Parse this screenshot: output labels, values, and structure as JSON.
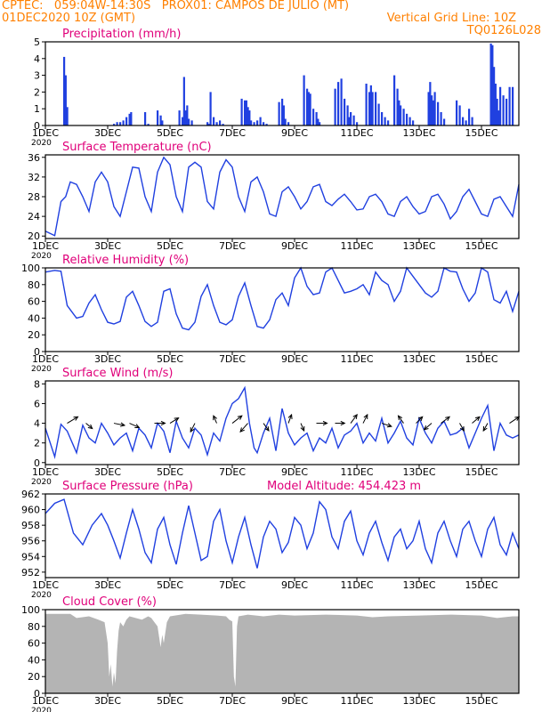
{
  "header": {
    "line1_left": "CPTEC:   059:04W-14:30S   PROX01: CAMPOS DE JULIO (MT)",
    "line2_left": "01DEC2020 10Z (GMT)",
    "line2_right": "Vertical Grid Line: 10Z",
    "line3_right": "TQ0126L028"
  },
  "colors": {
    "header": "#ff8000",
    "title": "#e0007a",
    "series": "#2040e0",
    "cloud": "#b4b4b4",
    "axis": "#000000",
    "arrow": "#000000"
  },
  "x_axis": {
    "ticks": [
      "1DEC",
      "3DEC",
      "5DEC",
      "7DEC",
      "9DEC",
      "11DEC",
      "13DEC",
      "15DEC"
    ],
    "tick_days": [
      0,
      2,
      4,
      6,
      8,
      10,
      12,
      14
    ],
    "range_days": [
      0,
      15.2
    ],
    "year_label": "2020"
  },
  "chart_data": [
    {
      "type": "bar",
      "title": "Precipitation (mm/h)",
      "ylim": [
        0,
        5
      ],
      "yticks": [
        0,
        1,
        2,
        3,
        4,
        5
      ],
      "x_days": [
        0.6,
        0.65,
        0.7,
        2.2,
        2.3,
        2.4,
        2.5,
        2.6,
        2.7,
        2.75,
        3.2,
        3.3,
        3.6,
        3.7,
        3.75,
        4.3,
        4.4,
        4.45,
        4.5,
        4.55,
        4.6,
        4.7,
        5.2,
        5.25,
        5.3,
        5.4,
        5.5,
        5.6,
        5.7,
        6.3,
        6.4,
        6.45,
        6.5,
        6.55,
        6.6,
        6.7,
        6.8,
        6.9,
        7.0,
        7.1,
        7.5,
        7.6,
        7.65,
        7.7,
        7.8,
        8.3,
        8.4,
        8.45,
        8.5,
        8.6,
        8.7,
        8.75,
        8.8,
        9.3,
        9.4,
        9.5,
        9.6,
        9.7,
        9.75,
        9.8,
        9.9,
        10.0,
        10.3,
        10.4,
        10.45,
        10.5,
        10.6,
        10.7,
        10.8,
        10.9,
        11.0,
        11.2,
        11.3,
        11.35,
        11.4,
        11.5,
        11.6,
        11.7,
        11.8,
        12.3,
        12.35,
        12.4,
        12.45,
        12.5,
        12.6,
        12.7,
        12.8,
        13.2,
        13.3,
        13.4,
        13.5,
        13.6,
        13.7,
        14.3,
        14.35,
        14.4,
        14.45,
        14.5,
        14.55,
        14.6,
        14.7,
        14.8,
        14.9,
        15.0
      ],
      "values": [
        4.1,
        3.0,
        1.1,
        0.1,
        0.2,
        0.2,
        0.3,
        0.5,
        0.7,
        0.8,
        0.8,
        0.1,
        0.9,
        0.6,
        0.3,
        0.9,
        0.5,
        2.9,
        0.9,
        1.2,
        0.4,
        0.3,
        0.2,
        0.1,
        2.0,
        0.5,
        0.2,
        0.3,
        0.1,
        1.6,
        1.5,
        1.5,
        1.1,
        0.9,
        0.3,
        0.2,
        0.3,
        0.5,
        0.2,
        0.1,
        1.4,
        1.6,
        1.2,
        0.4,
        0.2,
        3.0,
        2.2,
        2.0,
        1.9,
        1.0,
        0.8,
        0.4,
        0.2,
        2.2,
        2.6,
        2.8,
        1.6,
        1.2,
        0.5,
        0.8,
        0.6,
        0.2,
        2.5,
        2.0,
        2.4,
        2.0,
        2.0,
        1.3,
        0.8,
        0.5,
        0.3,
        3.0,
        2.2,
        1.5,
        1.2,
        1.0,
        0.7,
        0.5,
        0.3,
        2.0,
        2.6,
        1.8,
        1.5,
        2.0,
        1.4,
        0.8,
        0.4,
        1.5,
        1.2,
        0.5,
        0.3,
        1.0,
        0.5,
        4.9,
        4.8,
        3.5,
        2.5,
        1.6,
        0.9,
        2.3,
        1.8,
        1.6,
        2.3,
        2.3
      ]
    },
    {
      "type": "line",
      "title": "Surface Temperature (nC)",
      "ylim": [
        19.5,
        36.5
      ],
      "yticks": [
        20,
        24,
        28,
        32,
        36
      ],
      "x_days": [
        0,
        0.3,
        0.5,
        0.65,
        0.8,
        1.0,
        1.2,
        1.4,
        1.6,
        1.8,
        2.0,
        2.2,
        2.4,
        2.6,
        2.8,
        3.0,
        3.2,
        3.4,
        3.6,
        3.8,
        4.0,
        4.2,
        4.4,
        4.6,
        4.8,
        5.0,
        5.2,
        5.4,
        5.6,
        5.8,
        6.0,
        6.2,
        6.4,
        6.6,
        6.8,
        7.0,
        7.2,
        7.4,
        7.6,
        7.8,
        8.0,
        8.2,
        8.4,
        8.6,
        8.8,
        9.0,
        9.2,
        9.4,
        9.6,
        9.8,
        10.0,
        10.2,
        10.4,
        10.6,
        10.8,
        11.0,
        11.2,
        11.4,
        11.6,
        11.8,
        12.0,
        12.2,
        12.4,
        12.6,
        12.8,
        13.0,
        13.2,
        13.4,
        13.6,
        13.8,
        14.0,
        14.2,
        14.4,
        14.6,
        14.8,
        15.0,
        15.2
      ],
      "values": [
        21,
        20.1,
        27,
        28,
        31,
        30.5,
        28,
        25,
        31,
        33,
        31,
        26,
        24,
        29,
        34,
        33.8,
        28,
        25,
        33,
        36,
        34.5,
        28,
        25,
        34,
        35,
        34,
        27,
        25.5,
        33,
        35.5,
        34,
        28,
        25,
        31,
        32,
        29,
        24.5,
        24,
        29,
        30,
        28,
        25.5,
        27,
        30,
        30.5,
        27,
        26.2,
        27.5,
        28.5,
        27,
        25.3,
        25.5,
        28,
        28.5,
        27,
        24.5,
        24,
        27,
        28,
        26,
        24.5,
        25,
        28,
        28.5,
        26.5,
        23.5,
        25,
        28,
        29.5,
        27,
        24.5,
        24,
        27.5,
        28,
        26,
        24,
        30.5
      ]
    },
    {
      "type": "line",
      "title": "Relative Humidity (%)",
      "ylim": [
        0,
        100
      ],
      "yticks": [
        0,
        20,
        40,
        60,
        80,
        100
      ],
      "x_days": [
        0,
        0.3,
        0.5,
        0.7,
        1.0,
        1.2,
        1.4,
        1.6,
        1.8,
        2.0,
        2.2,
        2.4,
        2.6,
        2.8,
        3.0,
        3.2,
        3.4,
        3.6,
        3.8,
        4.0,
        4.2,
        4.4,
        4.6,
        4.8,
        5.0,
        5.2,
        5.4,
        5.6,
        5.8,
        6.0,
        6.2,
        6.4,
        6.6,
        6.8,
        7.0,
        7.2,
        7.4,
        7.6,
        7.8,
        8.0,
        8.2,
        8.4,
        8.6,
        8.8,
        9.0,
        9.2,
        9.4,
        9.6,
        9.8,
        10.0,
        10.2,
        10.4,
        10.6,
        10.8,
        11.0,
        11.2,
        11.4,
        11.6,
        11.8,
        12.0,
        12.2,
        12.4,
        12.6,
        12.8,
        13.0,
        13.2,
        13.4,
        13.6,
        13.8,
        14.0,
        14.2,
        14.4,
        14.6,
        14.8,
        15.0,
        15.2
      ],
      "values": [
        95,
        97,
        96,
        55,
        40,
        42,
        58,
        68,
        50,
        35,
        33,
        36,
        65,
        72,
        55,
        36,
        30,
        35,
        72,
        75,
        45,
        28,
        26,
        35,
        66,
        80,
        55,
        35,
        32,
        38,
        66,
        82,
        55,
        30,
        28,
        38,
        62,
        70,
        55,
        88,
        100,
        78,
        68,
        70,
        95,
        100,
        85,
        70,
        72,
        75,
        80,
        68,
        95,
        85,
        80,
        60,
        72,
        100,
        90,
        80,
        70,
        65,
        72,
        100,
        96,
        95,
        75,
        60,
        70,
        100,
        95,
        62,
        58,
        72,
        48,
        72
      ]
    },
    {
      "type": "line",
      "title": "Surface Wind (m/s)",
      "ylim": [
        -0.2,
        8.3
      ],
      "yticks": [
        0,
        2,
        4,
        6,
        8
      ],
      "x_days": [
        0,
        0.3,
        0.5,
        0.7,
        1.0,
        1.2,
        1.4,
        1.6,
        1.8,
        2.0,
        2.2,
        2.4,
        2.6,
        2.8,
        3.0,
        3.2,
        3.4,
        3.6,
        3.8,
        4.0,
        4.2,
        4.4,
        4.6,
        4.8,
        5.0,
        5.2,
        5.4,
        5.6,
        5.8,
        6.0,
        6.2,
        6.4,
        6.55,
        6.7,
        6.8,
        7.0,
        7.2,
        7.4,
        7.6,
        7.8,
        8.0,
        8.2,
        8.4,
        8.6,
        8.8,
        9.0,
        9.2,
        9.4,
        9.6,
        9.8,
        10.0,
        10.2,
        10.4,
        10.6,
        10.8,
        11.0,
        11.2,
        11.4,
        11.6,
        11.8,
        12.0,
        12.2,
        12.4,
        12.6,
        12.8,
        13.0,
        13.2,
        13.4,
        13.6,
        13.8,
        14.0,
        14.2,
        14.4,
        14.6,
        14.8,
        15.0,
        15.2
      ],
      "values": [
        3.5,
        0.6,
        3.9,
        3.2,
        1.0,
        3.8,
        2.5,
        2.0,
        4.0,
        3.0,
        1.8,
        2.5,
        3.0,
        1.2,
        3.5,
        2.8,
        1.5,
        4.0,
        3.2,
        1.0,
        4.2,
        2.5,
        1.5,
        3.5,
        2.8,
        0.8,
        3.0,
        2.2,
        4.5,
        6.0,
        6.5,
        7.6,
        4.0,
        1.5,
        1.0,
        3.0,
        4.5,
        1.2,
        5.5,
        3.0,
        1.8,
        2.5,
        3.0,
        1.2,
        2.5,
        2.0,
        3.5,
        1.5,
        2.8,
        3.2,
        4.0,
        2.0,
        3.0,
        2.2,
        4.5,
        2.0,
        3.0,
        4.2,
        2.5,
        1.8,
        4.5,
        3.0,
        2.0,
        3.5,
        4.2,
        2.8,
        3.0,
        3.5,
        1.5,
        3.0,
        4.5,
        5.8,
        1.2,
        4.0,
        2.8,
        2.5,
        2.8
      ],
      "arrows": {
        "x_days": [
          0.7,
          1.3,
          2.2,
          2.7,
          3.5,
          4.0,
          4.8,
          5.5,
          6.5,
          6.0,
          7.0,
          7.8,
          8.2,
          8.7,
          9.3,
          9.8,
          10.2,
          10.8,
          11.5,
          11.9,
          12.4,
          12.7,
          13.3,
          13.7,
          14.2,
          14.9
        ],
        "u": [
          1,
          0.6,
          1,
          0.9,
          1,
          0.8,
          -0.4,
          -0.3,
          -0.7,
          0.9,
          0.5,
          0.3,
          0.3,
          1,
          0.9,
          0.6,
          0.4,
          0.9,
          -0.5,
          0.6,
          -0.7,
          0.8,
          0.4,
          0.7,
          -0.4,
          0.9
        ],
        "v": [
          0.6,
          -0.5,
          -0.2,
          -0.4,
          0,
          0.5,
          -0.8,
          0.7,
          -0.8,
          0.7,
          -0.7,
          0.8,
          -0.7,
          0,
          0,
          0.8,
          0.8,
          -0.3,
          0.7,
          0.6,
          -0.6,
          0.6,
          -0.7,
          0.6,
          -0.7,
          0.6
        ]
      }
    },
    {
      "type": "line",
      "title": "Surface Pressure (hPa)",
      "subtitle": "Model Altitude: 454.423 m",
      "ylim": [
        951.3,
        962
      ],
      "yticks": [
        952,
        954,
        956,
        958,
        960,
        962
      ],
      "x_days": [
        0,
        0.3,
        0.6,
        0.9,
        1.2,
        1.5,
        1.8,
        2.0,
        2.2,
        2.4,
        2.6,
        2.8,
        3.0,
        3.2,
        3.4,
        3.6,
        3.8,
        4.0,
        4.2,
        4.4,
        4.6,
        4.8,
        5.0,
        5.2,
        5.4,
        5.6,
        5.8,
        6.0,
        6.2,
        6.4,
        6.6,
        6.8,
        7.0,
        7.2,
        7.4,
        7.6,
        7.8,
        8.0,
        8.2,
        8.4,
        8.6,
        8.8,
        9.0,
        9.2,
        9.4,
        9.6,
        9.8,
        10.0,
        10.2,
        10.4,
        10.6,
        10.8,
        11.0,
        11.2,
        11.4,
        11.6,
        11.8,
        12.0,
        12.2,
        12.4,
        12.6,
        12.8,
        13.0,
        13.2,
        13.4,
        13.6,
        13.8,
        14.0,
        14.2,
        14.4,
        14.6,
        14.8,
        15.0,
        15.2
      ],
      "values": [
        959.5,
        960.8,
        961.3,
        957,
        955.5,
        958,
        959.5,
        958,
        956,
        953.8,
        957,
        960,
        957.5,
        954.5,
        953.2,
        957.5,
        959,
        955.5,
        953,
        957,
        960.5,
        957,
        953.5,
        954,
        958.5,
        960,
        956,
        953.2,
        956.5,
        959,
        955.5,
        952.5,
        956.5,
        958.5,
        957.5,
        954.5,
        955.8,
        959,
        958,
        955,
        957,
        961,
        960,
        956.5,
        955,
        958.5,
        959.8,
        956,
        954.2,
        957,
        958.5,
        955.8,
        953.5,
        956.5,
        957.5,
        955,
        956,
        958.5,
        955,
        953.2,
        957,
        958.5,
        956,
        954,
        957.5,
        958.5,
        956,
        954,
        957.5,
        959,
        955.5,
        954.2,
        957,
        955
      ]
    },
    {
      "type": "area",
      "title": "Cloud Cover (%)",
      "ylim": [
        0,
        100
      ],
      "yticks": [
        0,
        20,
        40,
        60,
        80,
        100
      ],
      "x_days": [
        0,
        0.8,
        1.0,
        1.4,
        1.7,
        1.9,
        2.0,
        2.05,
        2.1,
        2.15,
        2.2,
        2.25,
        2.3,
        2.35,
        2.4,
        2.5,
        2.6,
        2.7,
        2.9,
        3.1,
        3.3,
        3.4,
        3.5,
        3.6,
        3.7,
        3.75,
        3.8,
        3.9,
        4.0,
        4.5,
        5.0,
        5.5,
        5.8,
        5.9,
        6.0,
        6.05,
        6.1,
        6.15,
        6.2,
        6.5,
        7.0,
        7.5,
        8.0,
        9.0,
        10.0,
        10.5,
        11.0,
        12.0,
        13.0,
        14.0,
        14.5,
        15.0,
        15.2
      ],
      "values": [
        95,
        95,
        90,
        92,
        88,
        85,
        60,
        20,
        35,
        8,
        25,
        12,
        50,
        75,
        85,
        80,
        88,
        92,
        90,
        88,
        92,
        90,
        85,
        80,
        55,
        70,
        60,
        85,
        92,
        95,
        94,
        93,
        92,
        88,
        86,
        20,
        8,
        80,
        92,
        94,
        92,
        94,
        93,
        94,
        93,
        91,
        92,
        93,
        94,
        93,
        90,
        92,
        92
      ]
    }
  ]
}
